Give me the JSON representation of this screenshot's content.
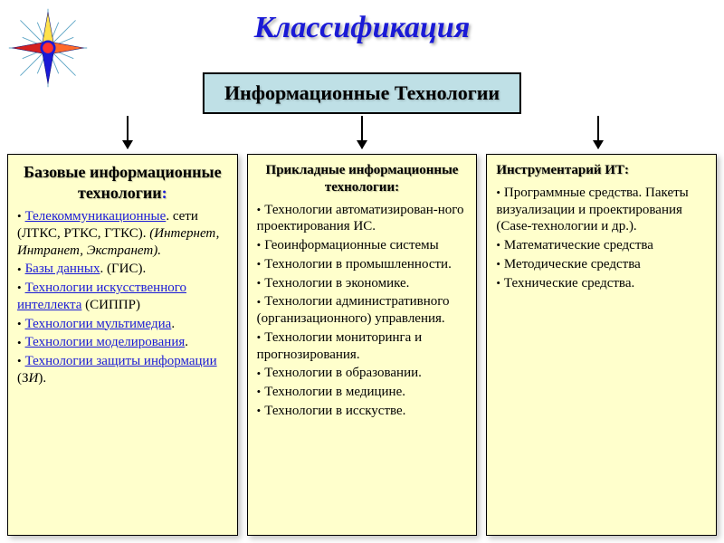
{
  "page": {
    "background_color": "#ffffff",
    "title": "Классификация",
    "title_color": "#1a1ad6",
    "title_fontsize": 34
  },
  "star": {
    "rays_color": "#5ea6c6",
    "card_colors": [
      "#ffe24a",
      "#ff6a2a",
      "#1a1ad6",
      "#d42020"
    ],
    "center_fill": "#ff3030",
    "center_stroke": "#1a1ad6"
  },
  "root": {
    "label": "Информационные Технологии",
    "fill": "#bfe0e6",
    "border": "#000000",
    "text_color": "#000000",
    "fontsize": 22
  },
  "arrows": {
    "color": "#000000"
  },
  "columns": {
    "fill": "#ffffcc",
    "border": "#000000",
    "title_shadow": "1px 1px 1px rgba(0,0,0,0.25)"
  },
  "col1": {
    "title": "Базовые информационные технологии",
    "title_fontsize": 18,
    "items": [
      {
        "parts": [
          {
            "t": "Телекоммуникационные",
            "cls": "link"
          },
          {
            "t": ". сети  (ЛТКС, РТКС, ГТКС). "
          },
          {
            "t": "(Интернет, Интранет, Экстранет).",
            "cls": "italic"
          }
        ]
      },
      {
        "parts": [
          {
            "t": "Базы данных",
            "cls": "link"
          },
          {
            "t": ". (ГИС)."
          }
        ]
      },
      {
        "parts": [
          {
            "t": "Технологии искусственного интеллекта",
            "cls": "link"
          },
          {
            "t": " (СИППР)"
          }
        ]
      },
      {
        "parts": [
          {
            "t": "Технологии мультимедиа",
            "cls": "link"
          },
          {
            "t": "."
          }
        ]
      },
      {
        "parts": [
          {
            "t": "Технологии моделирования",
            "cls": "link"
          },
          {
            "t": "."
          }
        ]
      },
      {
        "parts": [
          {
            "t": "Технологии защиты информации",
            "cls": "link"
          },
          {
            "t": " (З"
          },
          {
            "t": "И",
            "cls": "italic"
          },
          {
            "t": ")."
          }
        ]
      }
    ]
  },
  "col2": {
    "title": "Прикладные информационные технологии:",
    "title_fontsize": 15,
    "items": [
      {
        "parts": [
          {
            "t": "Технологии автоматизирован-ного проектирования ИС."
          }
        ]
      },
      {
        "parts": [
          {
            "t": "Геоинформационные системы"
          }
        ]
      },
      {
        "parts": [
          {
            "t": "Технологии в промышленности."
          }
        ]
      },
      {
        "parts": [
          {
            "t": "Технологии в экономике."
          }
        ]
      },
      {
        "parts": [
          {
            "t": "Технологии административного (организационного) управления."
          }
        ]
      },
      {
        "parts": [
          {
            "t": "Технологии мониторинга и прогнозирования."
          }
        ]
      },
      {
        "parts": [
          {
            "t": "Технологии в образовании."
          }
        ]
      },
      {
        "parts": [
          {
            "t": "Технологии в медицине."
          }
        ]
      },
      {
        "parts": [
          {
            "t": "Технологии в исскустве."
          }
        ]
      }
    ]
  },
  "col3": {
    "title": "Инструментарий ИТ",
    "title_fontsize": 15,
    "items": [
      {
        "parts": [
          {
            "t": "Программные средства.    Пакеты визуализации и проектирования (Case-технологии и др.)."
          }
        ]
      },
      {
        "parts": [
          {
            "t": "Математические средства"
          }
        ]
      },
      {
        "parts": [
          {
            "t": "Методические средства"
          }
        ]
      },
      {
        "parts": [
          {
            "t": "Технические средства."
          }
        ]
      }
    ]
  }
}
